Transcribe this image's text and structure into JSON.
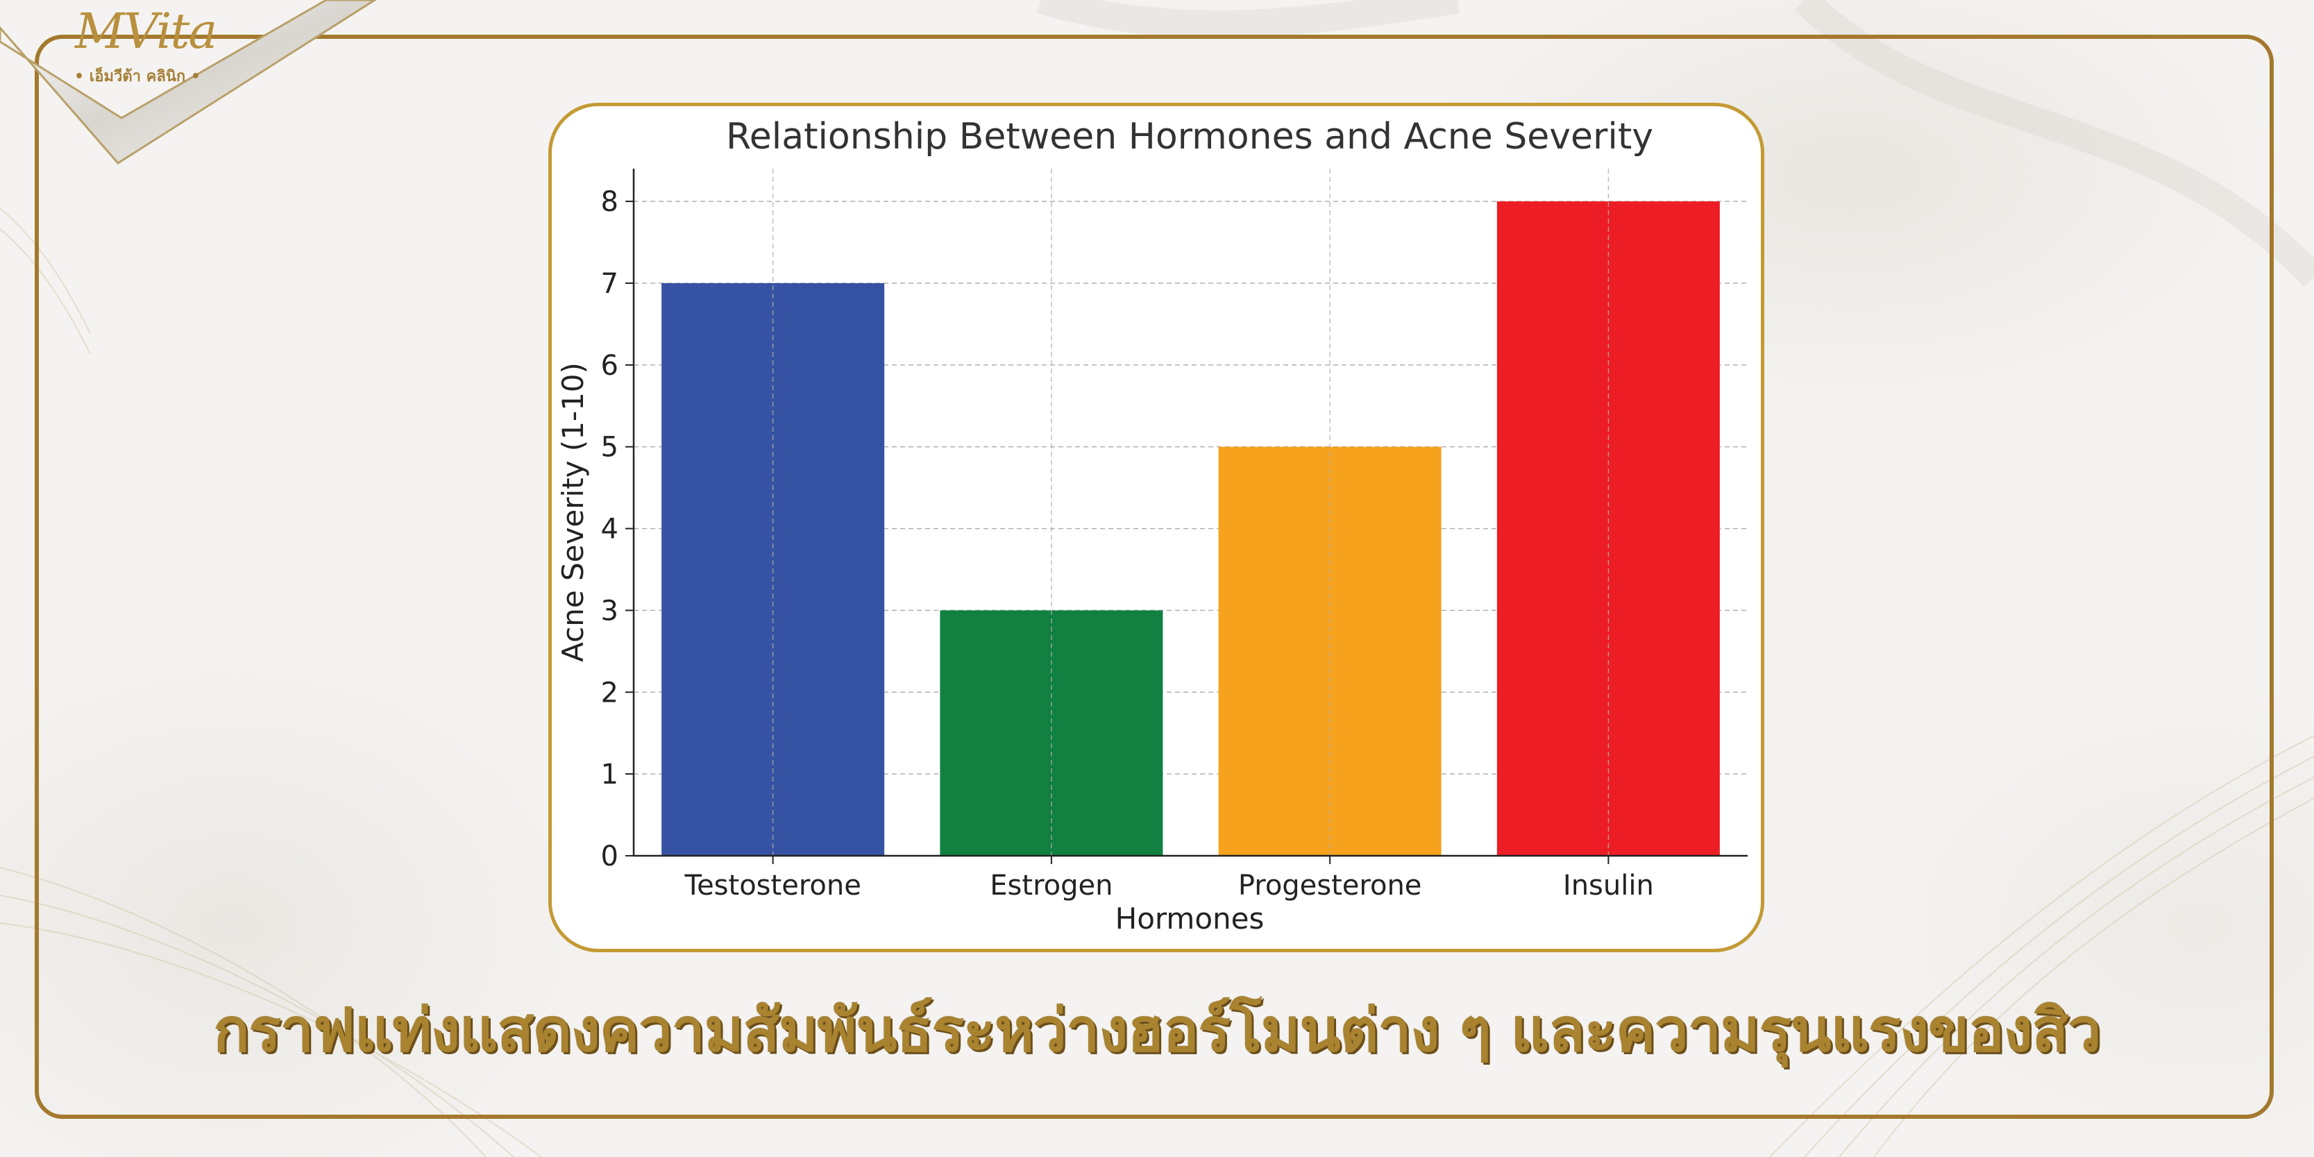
{
  "logo": {
    "brand": "MVita",
    "sub": "• เอ็มวีต้า คลินิก •"
  },
  "caption": "กราฟแท่งแสดงความสัมพันธ์ระหว่างฮอร์โมนต่าง ๆ และความรุนแรงของสิว",
  "chart_data": {
    "type": "bar",
    "title": "Relationship Between Hormones and Acne Severity",
    "xlabel": "Hormones",
    "ylabel": "Acne Severity (1-10)",
    "categories": [
      "Testosterone",
      "Estrogen",
      "Progesterone",
      "Insulin"
    ],
    "values": [
      7,
      3,
      5,
      8
    ],
    "colors": [
      "#3652a3",
      "#118041",
      "#f6a21d",
      "#ec1d25"
    ],
    "ylim": [
      0,
      8.4
    ],
    "yticks": [
      0,
      1,
      2,
      3,
      4,
      5,
      6,
      7,
      8
    ],
    "grid": true
  },
  "colors": {
    "frame": "#a4792e",
    "card_border": "#c39a34",
    "caption_gold": "#a9832f"
  }
}
